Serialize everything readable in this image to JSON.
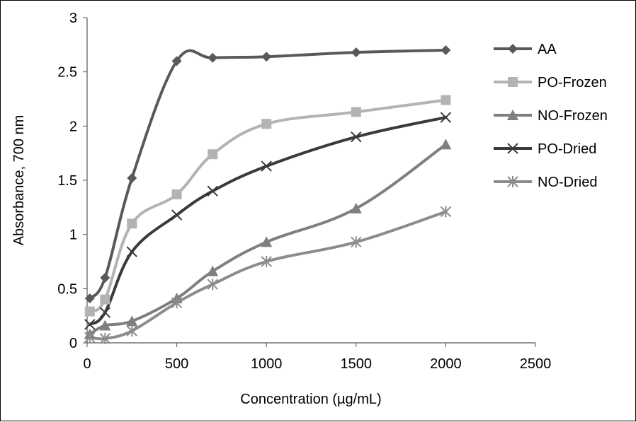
{
  "chart_data": {
    "type": "line",
    "xlabel": "Concentration (µg/mL)",
    "ylabel": "Absorbance, 700 nm",
    "xlim": [
      0,
      2500
    ],
    "ylim": [
      0,
      3
    ],
    "xticks": [
      "0",
      "500",
      "1000",
      "1500",
      "2000",
      "2500"
    ],
    "yticks": [
      "0",
      "0.5",
      "1",
      "1.5",
      "2",
      "2.5",
      "3"
    ],
    "grid": false,
    "legend_position": "right",
    "smooth": true,
    "series": [
      {
        "name": "AA",
        "color": "#595959",
        "marker": "diamond",
        "x": [
          15,
          100,
          250,
          500,
          700,
          1000,
          1500,
          2000
        ],
        "y": [
          0.41,
          0.6,
          1.52,
          2.6,
          2.63,
          2.64,
          2.68,
          2.7
        ]
      },
      {
        "name": "PO-Frozen",
        "color": "#b3b3b3",
        "marker": "square",
        "x": [
          15,
          100,
          250,
          500,
          700,
          1000,
          1500,
          2000
        ],
        "y": [
          0.29,
          0.4,
          1.1,
          1.37,
          1.74,
          2.02,
          2.13,
          2.24
        ]
      },
      {
        "name": "NO-Frozen",
        "color": "#7f7f7f",
        "marker": "triangle",
        "x": [
          15,
          100,
          250,
          500,
          700,
          1000,
          1500,
          2000
        ],
        "y": [
          0.08,
          0.16,
          0.2,
          0.41,
          0.66,
          0.93,
          1.24,
          1.83
        ]
      },
      {
        "name": "PO-Dried",
        "color": "#3a3a3a",
        "marker": "x",
        "x": [
          15,
          100,
          250,
          500,
          700,
          1000,
          1500,
          2000
        ],
        "y": [
          0.17,
          0.28,
          0.84,
          1.18,
          1.4,
          1.63,
          1.9,
          2.08
        ]
      },
      {
        "name": "NO-Dried",
        "color": "#8c8c8c",
        "marker": "asterisk",
        "x": [
          15,
          100,
          250,
          500,
          700,
          1000,
          1500,
          2000
        ],
        "y": [
          0.05,
          0.04,
          0.11,
          0.37,
          0.54,
          0.75,
          0.93,
          1.21
        ]
      }
    ]
  }
}
